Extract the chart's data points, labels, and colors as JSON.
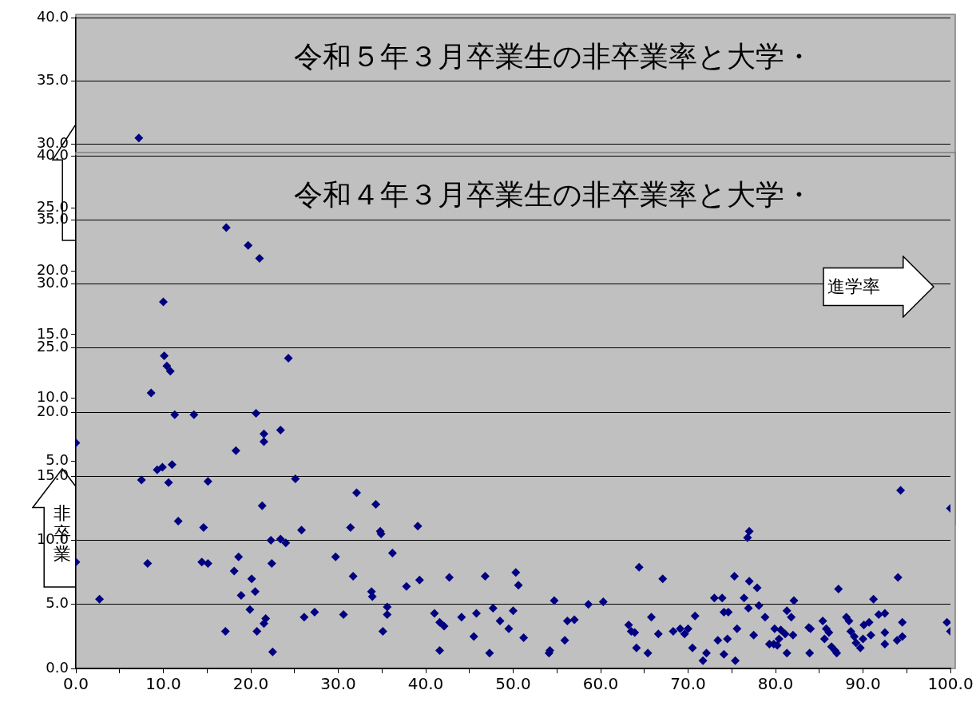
{
  "chart_data": [
    {
      "type": "scatter",
      "title": "令和５年３月卒業生の非卒業率と大学・",
      "x": [
        7.2
      ],
      "series": [
        {
          "color": "#000080",
          "values": [
            30.5
          ]
        }
      ],
      "xlim": [
        0,
        100
      ],
      "ylim": [
        0,
        40
      ],
      "tick_labels": "y",
      "yticks": [
        {
          "value": 0,
          "label": null
        },
        {
          "value": 5,
          "label": "5.0"
        },
        {
          "value": 10,
          "label": "10.0"
        },
        {
          "value": 15,
          "label": "15.0"
        },
        {
          "value": 20,
          "label": "20.0"
        },
        {
          "value": 25,
          "label": "25.0"
        },
        {
          "value": 30,
          "label": "30.0"
        },
        {
          "value": 35,
          "label": "35.0"
        },
        {
          "value": 40,
          "label": "40.0"
        }
      ],
      "grid": "y",
      "marker": "diamond",
      "legend": false
    },
    {
      "type": "scatter",
      "title": "令和４年３月卒業生の非卒業率と大学・",
      "xlabel": "進学率",
      "ylabel": "非卒業",
      "x": [
        17.2,
        19.7,
        21.0,
        10.0,
        10.1,
        10.4,
        10.8,
        8.6,
        11.3,
        13.5,
        20.6,
        21.5,
        21.5,
        23.4,
        24.3,
        18.3,
        9.3,
        9.9,
        11.0,
        7.5,
        10.6,
        15.1,
        25.1,
        21.3,
        11.7,
        14.6,
        25.8,
        31.4,
        32.1,
        34.3,
        34.8,
        34.9,
        39.1,
        36.2,
        22.3,
        23.4,
        24.0,
        8.2,
        14.4,
        15.1,
        18.6,
        18.1,
        22.4,
        29.7,
        31.7,
        20.1,
        18.9,
        20.5,
        19.9,
        21.7,
        21.5,
        20.7,
        17.1,
        22.5,
        2.7,
        26.1,
        27.3,
        30.6,
        33.9,
        33.8,
        35.6,
        35.6,
        35.1,
        37.8,
        39.3,
        41.0,
        41.6,
        42.1,
        41.6,
        42.7,
        44.1,
        45.5,
        45.8,
        46.8,
        47.3,
        47.7,
        48.5,
        49.5,
        50.0,
        50.3,
        50.6,
        51.2,
        54.1,
        54.2,
        54.7,
        55.9,
        56.2,
        57.0,
        58.6,
        60.3,
        63.2,
        63.5,
        63.9,
        64.4,
        64.1,
        65.4,
        65.8,
        66.6,
        67.1,
        68.3,
        69.1,
        69.6,
        70.0,
        70.5,
        70.8,
        71.7,
        72.1,
        73.0,
        73.9,
        74.1,
        74.6,
        73.4,
        74.1,
        74.5,
        75.3,
        75.4,
        75.6,
        76.4,
        76.9,
        76.8,
        77.0,
        77.0,
        77.5,
        77.9,
        78.1,
        78.8,
        79.3,
        79.8,
        80.2,
        79.9,
        80.6,
        80.4,
        81.1,
        81.3,
        81.8,
        82.1,
        81.3,
        82.0,
        83.8,
        84.0,
        83.9,
        85.4,
        85.8,
        85.6,
        86.1,
        86.4,
        86.8,
        87.0,
        87.2,
        88.1,
        88.4,
        88.6,
        89.0,
        89.2,
        89.7,
        90.0,
        90.1,
        90.7,
        90.9,
        91.2,
        91.8,
        92.5,
        92.5,
        92.5,
        93.9,
        94.0,
        94.3,
        94.5,
        94.5,
        100,
        99.6,
        100,
        0,
        0
      ],
      "series": [
        {
          "color": "#000080",
          "values": [
            34.4,
            33.0,
            32.0,
            28.6,
            24.4,
            23.6,
            23.2,
            21.5,
            19.8,
            19.8,
            19.9,
            18.3,
            17.7,
            18.6,
            24.2,
            17.0,
            15.5,
            15.7,
            15.9,
            14.7,
            14.5,
            14.6,
            14.8,
            12.7,
            11.5,
            11.0,
            10.8,
            11.0,
            13.7,
            12.8,
            10.7,
            10.5,
            11.1,
            9.0,
            10.0,
            10.1,
            9.8,
            8.2,
            8.3,
            8.2,
            8.7,
            7.6,
            8.2,
            8.7,
            7.2,
            7.0,
            5.7,
            6.0,
            4.6,
            3.9,
            3.5,
            2.9,
            2.9,
            1.3,
            5.4,
            4.0,
            4.4,
            4.2,
            5.6,
            6.0,
            4.8,
            4.2,
            2.9,
            6.4,
            6.9,
            4.3,
            3.6,
            3.3,
            1.4,
            7.1,
            4.0,
            2.5,
            4.3,
            7.2,
            1.2,
            4.7,
            3.7,
            3.1,
            4.5,
            7.5,
            6.5,
            2.4,
            1.2,
            1.4,
            5.3,
            2.2,
            3.7,
            3.8,
            5.0,
            5.2,
            3.4,
            2.9,
            2.8,
            7.9,
            1.6,
            1.2,
            4.0,
            2.7,
            7.0,
            2.9,
            3.1,
            2.7,
            3.1,
            1.6,
            4.1,
            0.6,
            1.2,
            5.5,
            5.5,
            4.4,
            4.4,
            2.2,
            1.1,
            2.3,
            7.2,
            0.6,
            3.1,
            5.5,
            4.7,
            10.2,
            10.7,
            6.8,
            2.6,
            6.3,
            4.9,
            4.0,
            1.9,
            1.9,
            1.8,
            3.1,
            3.0,
            2.3,
            2.7,
            4.5,
            4.0,
            5.3,
            1.2,
            2.6,
            3.2,
            3.1,
            1.2,
            3.7,
            3.1,
            2.3,
            2.8,
            1.7,
            1.4,
            1.2,
            6.2,
            4.0,
            3.7,
            2.9,
            2.5,
            2.0,
            1.6,
            2.3,
            3.4,
            3.6,
            2.6,
            5.4,
            4.2,
            2.8,
            4.3,
            1.9,
            2.2,
            7.1,
            13.9,
            3.6,
            2.5,
            12.5,
            3.6,
            2.9,
            17.6,
            8.3
          ]
        }
      ],
      "xlim": [
        0,
        100
      ],
      "ylim": [
        0,
        40
      ],
      "xticks": [
        {
          "value": 0,
          "label": "0.0"
        },
        {
          "value": 5,
          "label": null
        },
        {
          "value": 10,
          "label": "10.0"
        },
        {
          "value": 15,
          "label": null
        },
        {
          "value": 20,
          "label": "20.0"
        },
        {
          "value": 25,
          "label": null
        },
        {
          "value": 30,
          "label": "30.0"
        },
        {
          "value": 35,
          "label": null
        },
        {
          "value": 40,
          "label": "40.0"
        },
        {
          "value": 45,
          "label": null
        },
        {
          "value": 50,
          "label": "50.0"
        },
        {
          "value": 55,
          "label": null
        },
        {
          "value": 60,
          "label": "60.0"
        },
        {
          "value": 65,
          "label": null
        },
        {
          "value": 70,
          "label": "70.0"
        },
        {
          "value": 75,
          "label": null
        },
        {
          "value": 80,
          "label": "80.0"
        },
        {
          "value": 85,
          "label": null
        },
        {
          "value": 90,
          "label": "90.0"
        },
        {
          "value": 95,
          "label": null
        },
        {
          "value": 100,
          "label": "100.0"
        }
      ],
      "yticks": [
        {
          "value": 0,
          "label": "0.0"
        },
        {
          "value": 5,
          "label": "5.0"
        },
        {
          "value": 10,
          "label": "10.0"
        },
        {
          "value": 15,
          "label": "15.0"
        },
        {
          "value": 20,
          "label": "20.0"
        },
        {
          "value": 25,
          "label": "25.0"
        },
        {
          "value": 30,
          "label": "30.0"
        },
        {
          "value": 35,
          "label": "35.0"
        },
        {
          "value": 40,
          "label": "40.0"
        }
      ],
      "grid": "y",
      "marker": "diamond",
      "legend": false
    }
  ]
}
